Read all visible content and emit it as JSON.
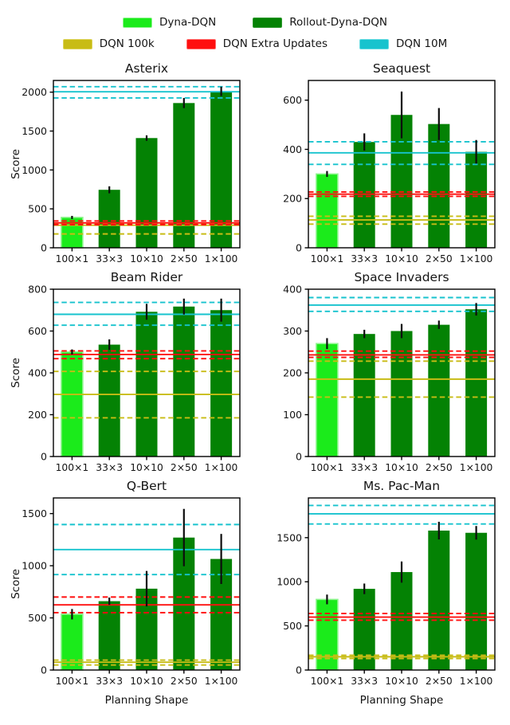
{
  "figure": {
    "grid": "2x3",
    "legend_position": "top"
  },
  "colors": {
    "dyna": "#1BEB1B",
    "dyna_edge": "#8FF58F",
    "rollout": "#048204",
    "rollout_edge": "#2F9A2F",
    "dqn_100k": "#C8BC15",
    "dqn_100k_edge": "#DCD35A",
    "dqn_extra": "#FF0F0F",
    "dqn_extra_edge": "#FF6A6A",
    "dqn_10m": "#17C3CE",
    "dqn_10m_edge": "#63DBE2",
    "error_bar": "#0d0d0d",
    "axis": "#000000"
  },
  "legend": {
    "row1": [
      {
        "label": "Dyna-DQN",
        "color_key": "dyna"
      },
      {
        "label": "Rollout-Dyna-DQN",
        "color_key": "rollout"
      }
    ],
    "row2": [
      {
        "label": "DQN 100k",
        "color_key": "dqn_100k"
      },
      {
        "label": "DQN Extra Updates",
        "color_key": "dqn_extra"
      },
      {
        "label": "DQN 10M",
        "color_key": "dqn_10m"
      }
    ]
  },
  "chart_data": [
    {
      "type": "bar",
      "title": "Asterix",
      "ylabel": "Score",
      "xlabel": "",
      "categories": [
        "100×1",
        "33×3",
        "10×10",
        "2×50",
        "1×100"
      ],
      "values": [
        390,
        745,
        1410,
        1860,
        2010
      ],
      "errors": [
        20,
        45,
        35,
        65,
        60
      ],
      "bar_series": [
        "Dyna-DQN",
        "Rollout-Dyna-DQN",
        "Rollout-Dyna-DQN",
        "Rollout-Dyna-DQN",
        "Rollout-Dyna-DQN"
      ],
      "bar_colors": [
        "dyna",
        "rollout",
        "rollout",
        "rollout",
        "rollout"
      ],
      "yticks": [
        0,
        500,
        1000,
        1500,
        2000
      ],
      "ylim": [
        0,
        2150
      ],
      "hlines": [
        {
          "name": "DQN 100k",
          "color_key": "dqn_100k",
          "solid": 290,
          "dashed": [
            310,
            178
          ]
        },
        {
          "name": "DQN Extra Updates",
          "color_key": "dqn_extra",
          "solid": 320,
          "dashed": [
            345,
            297
          ]
        },
        {
          "name": "DQN 10M",
          "color_key": "dqn_10m",
          "solid": 2005,
          "dashed": [
            2070,
            1925
          ]
        }
      ]
    },
    {
      "type": "bar",
      "title": "Seaquest",
      "ylabel": "",
      "xlabel": "",
      "categories": [
        "100×1",
        "33×3",
        "10×10",
        "2×50",
        "1×100"
      ],
      "values": [
        300,
        430,
        540,
        503,
        390
      ],
      "errors": [
        12,
        35,
        95,
        65,
        48
      ],
      "bar_series": [
        "Dyna-DQN",
        "Rollout-Dyna-DQN",
        "Rollout-Dyna-DQN",
        "Rollout-Dyna-DQN",
        "Rollout-Dyna-DQN"
      ],
      "bar_colors": [
        "dyna",
        "rollout",
        "rollout",
        "rollout",
        "rollout"
      ],
      "yticks": [
        0,
        200,
        400,
        600
      ],
      "ylim": [
        0,
        680
      ],
      "hlines": [
        {
          "name": "DQN 100k",
          "color_key": "dqn_100k",
          "solid": 113,
          "dashed": [
            128,
            96
          ]
        },
        {
          "name": "DQN Extra Updates",
          "color_key": "dqn_extra",
          "solid": 218,
          "dashed": [
            227,
            209
          ]
        },
        {
          "name": "DQN 10M",
          "color_key": "dqn_10m",
          "solid": 386,
          "dashed": [
            431,
            339
          ]
        }
      ]
    },
    {
      "type": "bar",
      "title": "Beam Rider",
      "ylabel": "Score",
      "xlabel": "",
      "categories": [
        "100×1",
        "33×3",
        "10×10",
        "2×50",
        "1×100"
      ],
      "values": [
        500,
        535,
        692,
        717,
        700
      ],
      "errors": [
        12,
        25,
        38,
        38,
        55
      ],
      "bar_series": [
        "Dyna-DQN",
        "Rollout-Dyna-DQN",
        "Rollout-Dyna-DQN",
        "Rollout-Dyna-DQN",
        "Rollout-Dyna-DQN"
      ],
      "bar_colors": [
        "dyna",
        "rollout",
        "rollout",
        "rollout",
        "rollout"
      ],
      "yticks": [
        0,
        200,
        400,
        600,
        800
      ],
      "ylim": [
        0,
        800
      ],
      "hlines": [
        {
          "name": "DQN 100k",
          "color_key": "dqn_100k",
          "solid": 297,
          "dashed": [
            407,
            185
          ]
        },
        {
          "name": "DQN Extra Updates",
          "color_key": "dqn_extra",
          "solid": 488,
          "dashed": [
            505,
            468
          ]
        },
        {
          "name": "DQN 10M",
          "color_key": "dqn_10m",
          "solid": 680,
          "dashed": [
            737,
            628
          ]
        }
      ]
    },
    {
      "type": "bar",
      "title": "Space Invaders",
      "ylabel": "",
      "xlabel": "",
      "categories": [
        "100×1",
        "33×3",
        "10×10",
        "2×50",
        "1×100"
      ],
      "values": [
        270,
        293,
        300,
        315,
        352
      ],
      "errors": [
        13,
        10,
        17,
        10,
        15
      ],
      "bar_series": [
        "Dyna-DQN",
        "Rollout-Dyna-DQN",
        "Rollout-Dyna-DQN",
        "Rollout-Dyna-DQN",
        "Rollout-Dyna-DQN"
      ],
      "bar_colors": [
        "dyna",
        "rollout",
        "rollout",
        "rollout",
        "rollout"
      ],
      "yticks": [
        0,
        100,
        200,
        300,
        400
      ],
      "ylim": [
        0,
        400
      ],
      "hlines": [
        {
          "name": "DQN 100k",
          "color_key": "dqn_100k",
          "solid": 185,
          "dashed": [
            228,
            142
          ]
        },
        {
          "name": "DQN Extra Updates",
          "color_key": "dqn_extra",
          "solid": 243,
          "dashed": [
            252,
            237
          ]
        },
        {
          "name": "DQN 10M",
          "color_key": "dqn_10m",
          "solid": 362,
          "dashed": [
            380,
            347
          ]
        }
      ]
    },
    {
      "type": "bar",
      "title": "Q-Bert",
      "ylabel": "Score",
      "xlabel": "Planning Shape",
      "categories": [
        "100×1",
        "33×3",
        "10×10",
        "2×50",
        "1×100"
      ],
      "values": [
        535,
        660,
        780,
        1270,
        1065
      ],
      "errors": [
        50,
        35,
        170,
        275,
        240
      ],
      "bar_series": [
        "Dyna-DQN",
        "Rollout-Dyna-DQN",
        "Rollout-Dyna-DQN",
        "Rollout-Dyna-DQN",
        "Rollout-Dyna-DQN"
      ],
      "bar_colors": [
        "dyna",
        "rollout",
        "rollout",
        "rollout",
        "rollout"
      ],
      "yticks": [
        0,
        500,
        1000,
        1500
      ],
      "ylim": [
        0,
        1650
      ],
      "hlines": [
        {
          "name": "DQN 100k",
          "color_key": "dqn_100k",
          "solid": 75,
          "dashed": [
            95,
            48
          ]
        },
        {
          "name": "DQN Extra Updates",
          "color_key": "dqn_extra",
          "solid": 625,
          "dashed": [
            700,
            550
          ]
        },
        {
          "name": "DQN 10M",
          "color_key": "dqn_10m",
          "solid": 1155,
          "dashed": [
            1395,
            915
          ]
        }
      ]
    },
    {
      "type": "bar",
      "title": "Ms. Pac-Man",
      "ylabel": "",
      "xlabel": "Planning Shape",
      "categories": [
        "100×1",
        "33×3",
        "10×10",
        "2×50",
        "1×100"
      ],
      "values": [
        800,
        920,
        1110,
        1580,
        1555
      ],
      "errors": [
        55,
        60,
        120,
        100,
        77
      ],
      "bar_series": [
        "Dyna-DQN",
        "Rollout-Dyna-DQN",
        "Rollout-Dyna-DQN",
        "Rollout-Dyna-DQN",
        "Rollout-Dyna-DQN"
      ],
      "bar_colors": [
        "dyna",
        "rollout",
        "rollout",
        "rollout",
        "rollout"
      ],
      "yticks": [
        0,
        500,
        1000,
        1500
      ],
      "ylim": [
        0,
        1950
      ],
      "hlines": [
        {
          "name": "DQN 100k",
          "color_key": "dqn_100k",
          "solid": 150,
          "dashed": [
            168,
            130
          ]
        },
        {
          "name": "DQN Extra Updates",
          "color_key": "dqn_extra",
          "solid": 600,
          "dashed": [
            640,
            565
          ]
        },
        {
          "name": "DQN 10M",
          "color_key": "dqn_10m",
          "solid": 1770,
          "dashed": [
            1865,
            1655
          ]
        }
      ]
    }
  ]
}
